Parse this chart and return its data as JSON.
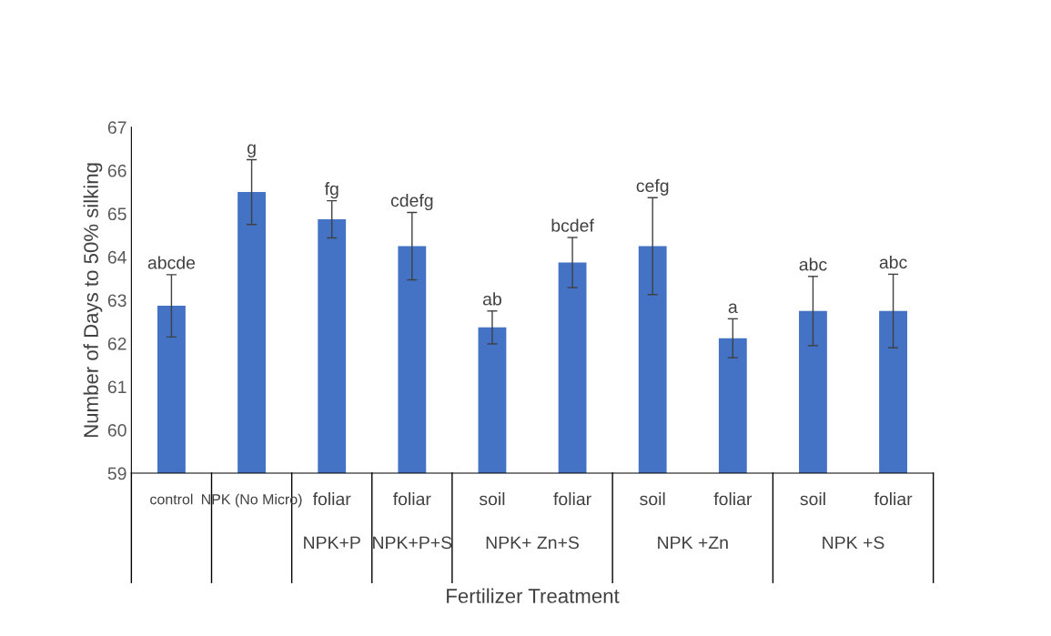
{
  "chart_data": {
    "type": "bar",
    "xlabel": "Fertilizer Treatment",
    "ylabel": "Number of Days to 50% silking",
    "categories": [
      "control",
      "NPK (No Micro)",
      "foliar",
      "foliar",
      "soil",
      "foliar",
      "soil",
      "foliar",
      "soil",
      "foliar"
    ],
    "values": [
      62.87,
      65.5,
      64.87,
      64.25,
      62.37,
      63.87,
      64.25,
      62.12,
      62.75,
      62.75
    ],
    "errors": [
      0.72,
      0.75,
      0.43,
      0.78,
      0.38,
      0.58,
      1.12,
      0.45,
      0.8,
      0.85
    ],
    "value_labels": [
      "abcde",
      "g",
      "fg",
      "cdefg",
      "ab",
      "bcdef",
      "cefg",
      "a",
      "abc",
      "abc"
    ],
    "color": "#4472c4",
    "ylim": [
      59,
      67
    ],
    "yticks": [
      59,
      60,
      61,
      62,
      63,
      64,
      65,
      66,
      67
    ],
    "grid": false,
    "annotations": [
      "NPK+P",
      "NPK+P+S",
      "NPK+ Zn+S",
      "NPK +Zn",
      "NPK +S"
    ]
  }
}
